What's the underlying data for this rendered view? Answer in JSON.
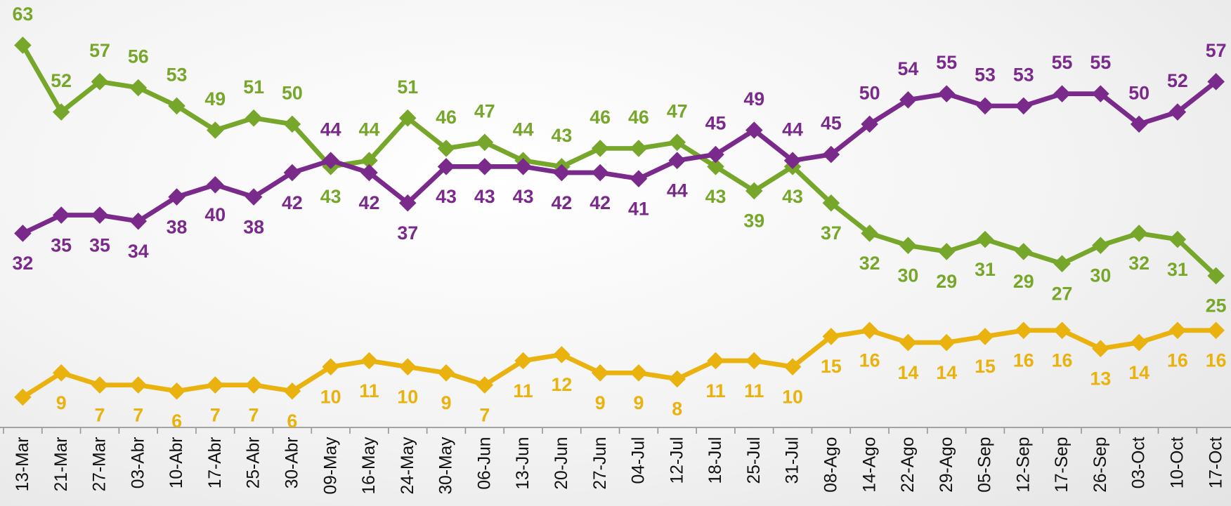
{
  "chart_data": {
    "type": "line",
    "categories": [
      "13-Mar",
      "21-Mar",
      "27-Mar",
      "03-Abr",
      "10-Abr",
      "17-Abr",
      "25-Abr",
      "30-Abr",
      "09-May",
      "16-May",
      "24-May",
      "30-May",
      "06-Jun",
      "13-Jun",
      "20-Jun",
      "27-Jun",
      "04-Jul",
      "12-Jul",
      "18-Jul",
      "25-Jul",
      "31-Jul",
      "08-Ago",
      "14-Ago",
      "22-Ago",
      "29-Ago",
      "05-Sep",
      "12-Sep",
      "17-Sep",
      "26-Sep",
      "03-Oct",
      "10-Oct",
      "17-Oct"
    ],
    "series": [
      {
        "color": "#76a72a",
        "values": [
          63,
          52,
          57,
          56,
          53,
          49,
          51,
          50,
          43,
          44,
          51,
          46,
          47,
          44,
          43,
          46,
          46,
          47,
          43,
          39,
          43,
          37,
          32,
          30,
          29,
          31,
          29,
          27,
          30,
          32,
          31,
          25
        ]
      },
      {
        "color": "#7a2a8a",
        "values": [
          32,
          35,
          35,
          34,
          38,
          40,
          38,
          42,
          44,
          42,
          37,
          43,
          43,
          43,
          42,
          42,
          41,
          44,
          45,
          49,
          44,
          45,
          50,
          54,
          55,
          53,
          53,
          55,
          55,
          50,
          52,
          57
        ]
      },
      {
        "color": "#e9b20e",
        "values": [
          5,
          9,
          7,
          7,
          6,
          7,
          7,
          6,
          10,
          11,
          10,
          9,
          7,
          11,
          12,
          9,
          9,
          8,
          11,
          11,
          10,
          15,
          16,
          14,
          14,
          15,
          16,
          16,
          13,
          14,
          16,
          16
        ],
        "value_labels": [
          null,
          "9",
          "7",
          "7",
          "6",
          "7",
          "7",
          "6",
          "10",
          "11",
          "10",
          "9",
          "7",
          "11",
          "12",
          "9",
          "9",
          "8",
          "11",
          "11",
          "10",
          "15",
          "16",
          "14",
          "14",
          "15",
          "16",
          "16",
          "13",
          "14",
          "16",
          "16"
        ]
      }
    ],
    "ylim": [
      0,
      70
    ]
  }
}
